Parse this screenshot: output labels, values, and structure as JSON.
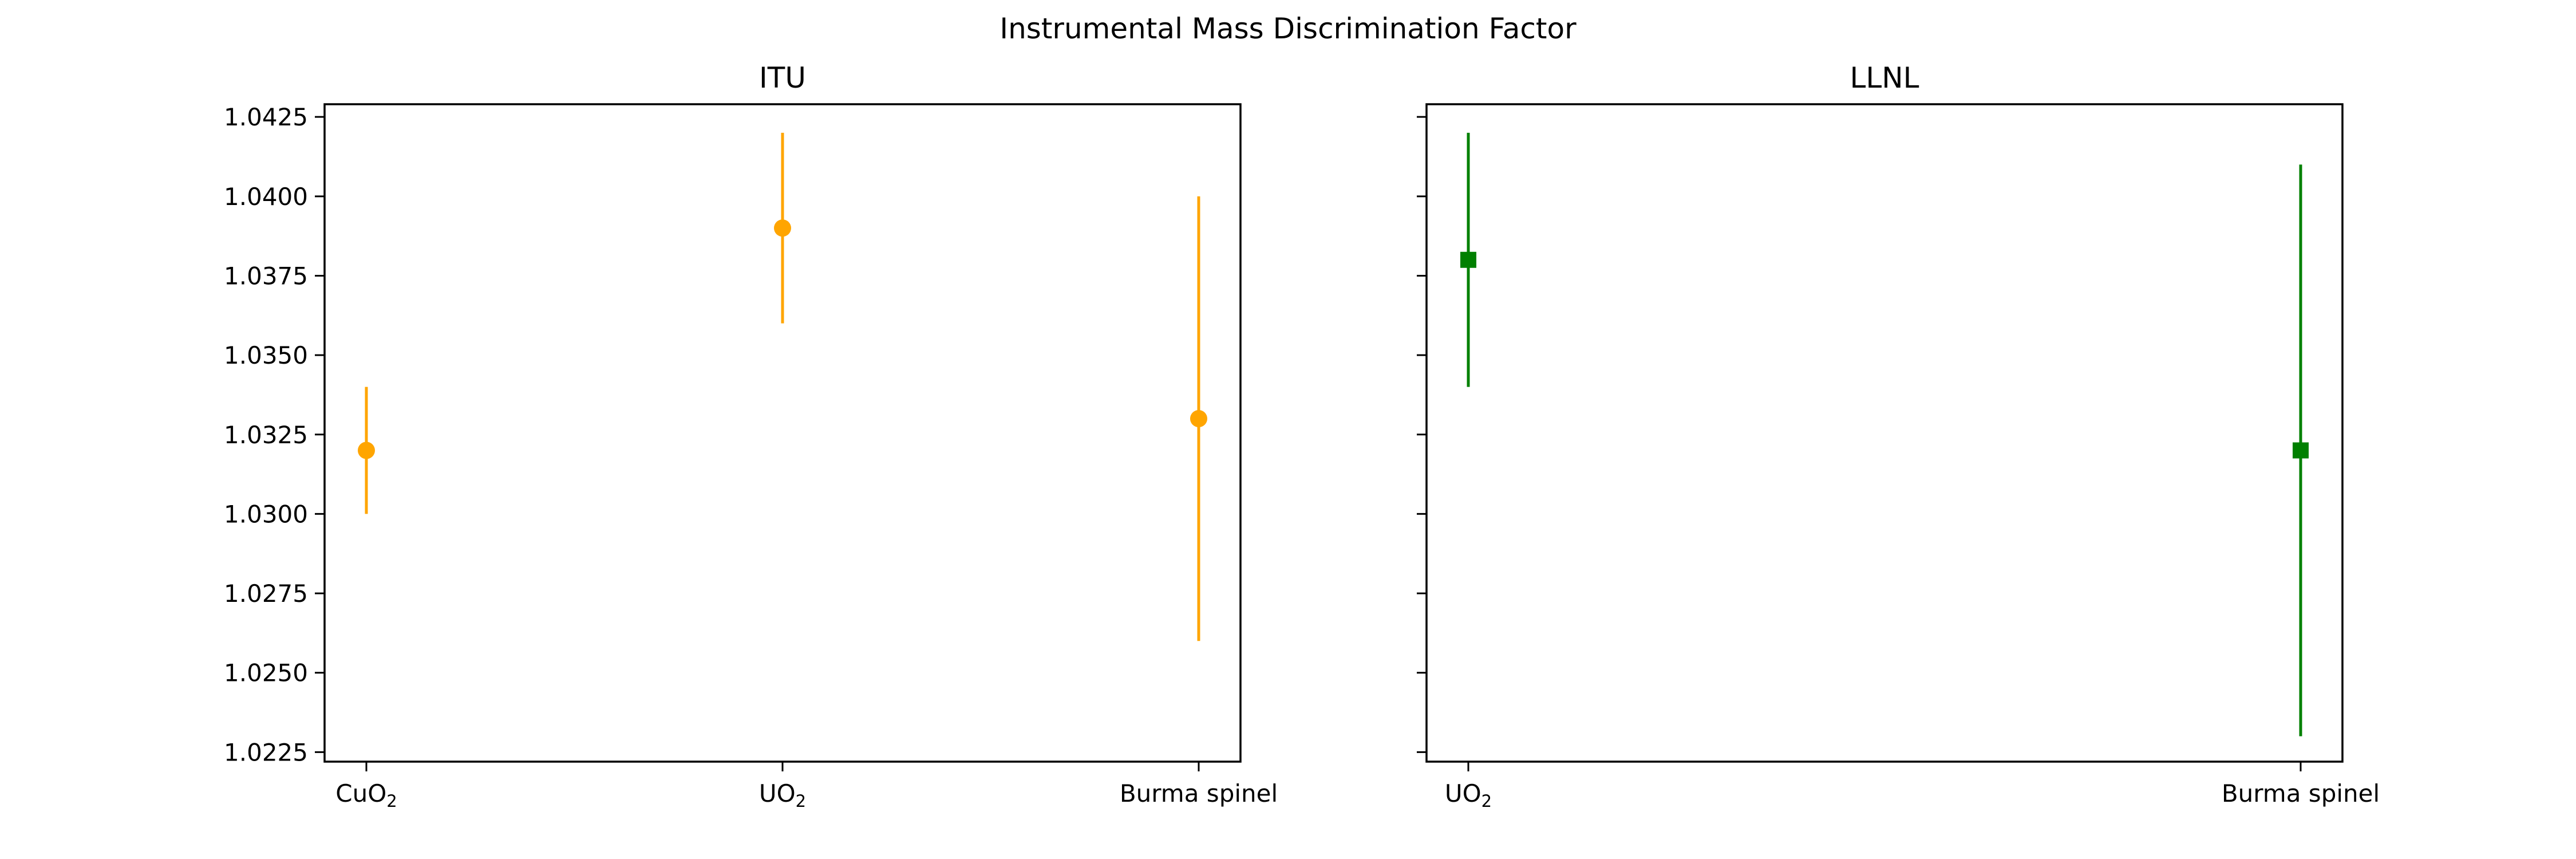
{
  "chart_data": [
    {
      "type": "scatter",
      "suptitle": "Instrumental Mass Discrimination Factor",
      "title": "ITU",
      "categories": [
        "CuO2",
        "UO2",
        "Burma spinel"
      ],
      "category_labels": [
        {
          "base": "CuO",
          "sub": "2"
        },
        {
          "base": "UO",
          "sub": "2"
        },
        {
          "base": "Burma spinel",
          "sub": ""
        }
      ],
      "values": [
        1.032,
        1.039,
        1.033
      ],
      "yerr_low": [
        1.03,
        1.036,
        1.026
      ],
      "yerr_high": [
        1.034,
        1.042,
        1.04
      ],
      "marker": "circle",
      "color": "#ffa500",
      "xlabel": "",
      "ylabel": "",
      "ylim": [
        1.0222,
        1.0429
      ],
      "yticks": [
        1.0225,
        1.025,
        1.0275,
        1.03,
        1.0325,
        1.035,
        1.0375,
        1.04,
        1.0425
      ],
      "ytick_labels": [
        "1.0225",
        "1.0250",
        "1.0275",
        "1.0300",
        "1.0325",
        "1.0350",
        "1.0375",
        "1.0400",
        "1.0425"
      ],
      "grid": false
    },
    {
      "type": "scatter",
      "title": "LLNL",
      "categories": [
        "UO2",
        "Burma spinel"
      ],
      "category_labels": [
        {
          "base": "UO",
          "sub": "2"
        },
        {
          "base": "Burma spinel",
          "sub": ""
        }
      ],
      "values": [
        1.038,
        1.032
      ],
      "yerr_low": [
        1.034,
        1.023
      ],
      "yerr_high": [
        1.042,
        1.041
      ],
      "marker": "square",
      "color": "#008000",
      "xlabel": "",
      "ylabel": "",
      "ylim": [
        1.0222,
        1.0429
      ],
      "yticks": [
        1.0225,
        1.025,
        1.0275,
        1.03,
        1.0325,
        1.035,
        1.0375,
        1.04,
        1.0425
      ],
      "ytick_labels": [
        "",
        "",
        "",
        "",
        "",
        "",
        "",
        "",
        ""
      ],
      "grid": false
    }
  ]
}
